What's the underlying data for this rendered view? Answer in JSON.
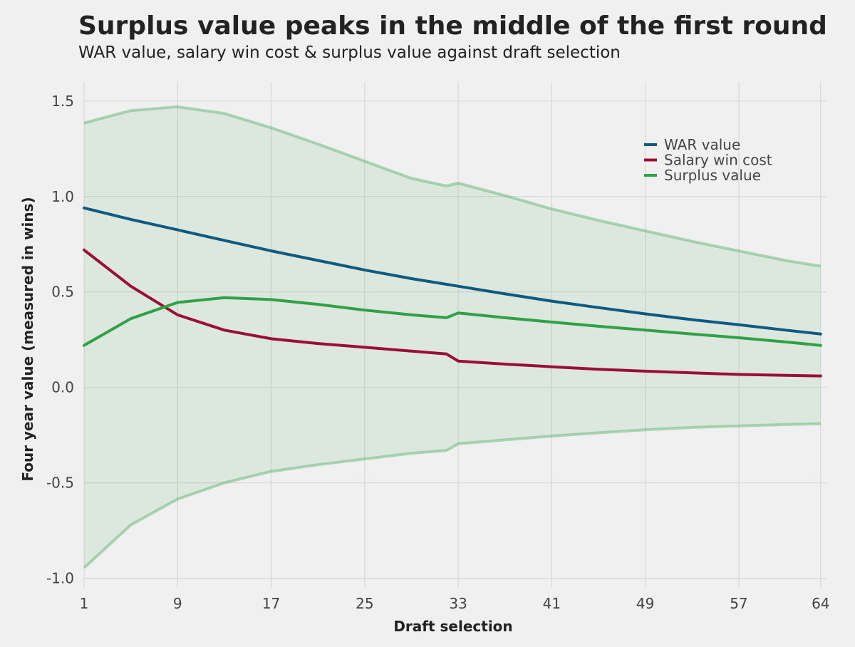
{
  "chart_data": {
    "type": "line",
    "title": "Surplus value peaks in the middle of the first round",
    "subtitle": "WAR value, salary win cost & surplus value against draft selection",
    "xlabel": "Draft selection",
    "ylabel": "Four year value (measured in wins)",
    "xlim": [
      1,
      64.5
    ],
    "ylim": [
      -1.05,
      1.6
    ],
    "x_ticks": [
      1,
      9,
      17,
      25,
      33,
      41,
      49,
      57,
      64
    ],
    "y_ticks": [
      1.5,
      1.0,
      0.5,
      0.0,
      -0.5,
      -1.0
    ],
    "y_tick_labels": [
      "1.5",
      "1.0",
      "0.5",
      "0.0",
      "-0.5",
      "-1.0"
    ],
    "grid": true,
    "legend_position": "top-right",
    "x": [
      1,
      5,
      9,
      13,
      17,
      21,
      25,
      29,
      32,
      33,
      37,
      41,
      45,
      49,
      53,
      57,
      61,
      64
    ],
    "series": [
      {
        "name": "WAR value",
        "color": "#0f5a80",
        "values": [
          0.94,
          0.88,
          0.825,
          0.77,
          0.715,
          0.665,
          0.615,
          0.57,
          0.54,
          0.53,
          0.49,
          0.452,
          0.418,
          0.385,
          0.355,
          0.328,
          0.3,
          0.28
        ]
      },
      {
        "name": "Salary win cost",
        "color": "#9b0f35",
        "values": [
          0.72,
          0.53,
          0.38,
          0.3,
          0.255,
          0.23,
          0.21,
          0.19,
          0.175,
          0.138,
          0.122,
          0.108,
          0.095,
          0.085,
          0.076,
          0.068,
          0.063,
          0.06
        ]
      },
      {
        "name": "Surplus value",
        "color": "#2fa146",
        "values": [
          0.22,
          0.36,
          0.445,
          0.47,
          0.46,
          0.435,
          0.405,
          0.38,
          0.365,
          0.39,
          0.365,
          0.342,
          0.32,
          0.3,
          0.28,
          0.26,
          0.238,
          0.22
        ]
      }
    ],
    "interval": {
      "color": "#2fa146",
      "upper": [
        1.385,
        1.45,
        1.47,
        1.435,
        1.36,
        1.275,
        1.185,
        1.095,
        1.055,
        1.07,
        1.005,
        0.935,
        0.875,
        0.82,
        0.765,
        0.715,
        0.665,
        0.635
      ],
      "lower": [
        -0.945,
        -0.72,
        -0.585,
        -0.5,
        -0.44,
        -0.405,
        -0.375,
        -0.345,
        -0.33,
        -0.295,
        -0.275,
        -0.255,
        -0.238,
        -0.222,
        -0.21,
        -0.202,
        -0.195,
        -0.19
      ]
    }
  }
}
